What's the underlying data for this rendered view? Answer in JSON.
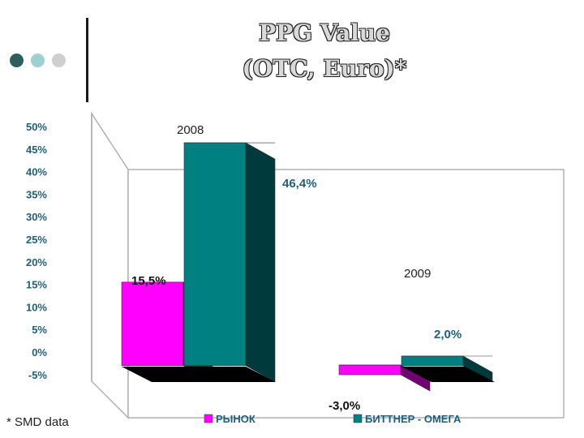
{
  "header": {
    "title_line1": "PPG Value",
    "title_line2": "(OTC, Euro)*",
    "dot_colors": [
      "#2e5f5f",
      "#9fd0d0",
      "#cfcfcf"
    ]
  },
  "footnote": "* SMD data",
  "chart_data": {
    "type": "bar",
    "categories": [
      "2008",
      "2009"
    ],
    "series": [
      {
        "name": "РЫНОК",
        "values": [
          15.5,
          -3.0
        ],
        "labels": [
          "15,5%",
          "-3,0%"
        ],
        "color": "#ff00ff"
      },
      {
        "name": "БИТТНЕР - ОМЕГА",
        "values": [
          46.4,
          2.0
        ],
        "labels": [
          "46,4%",
          "2,0%"
        ],
        "color": "#008080"
      }
    ],
    "ylim": [
      -5,
      50
    ],
    "yticks": [
      "50%",
      "45%",
      "40%",
      "35%",
      "30%",
      "25%",
      "20%",
      "15%",
      "10%",
      "5%",
      "0%",
      "-5%"
    ],
    "legend_position": "bottom",
    "grid": false,
    "three_d": true
  }
}
